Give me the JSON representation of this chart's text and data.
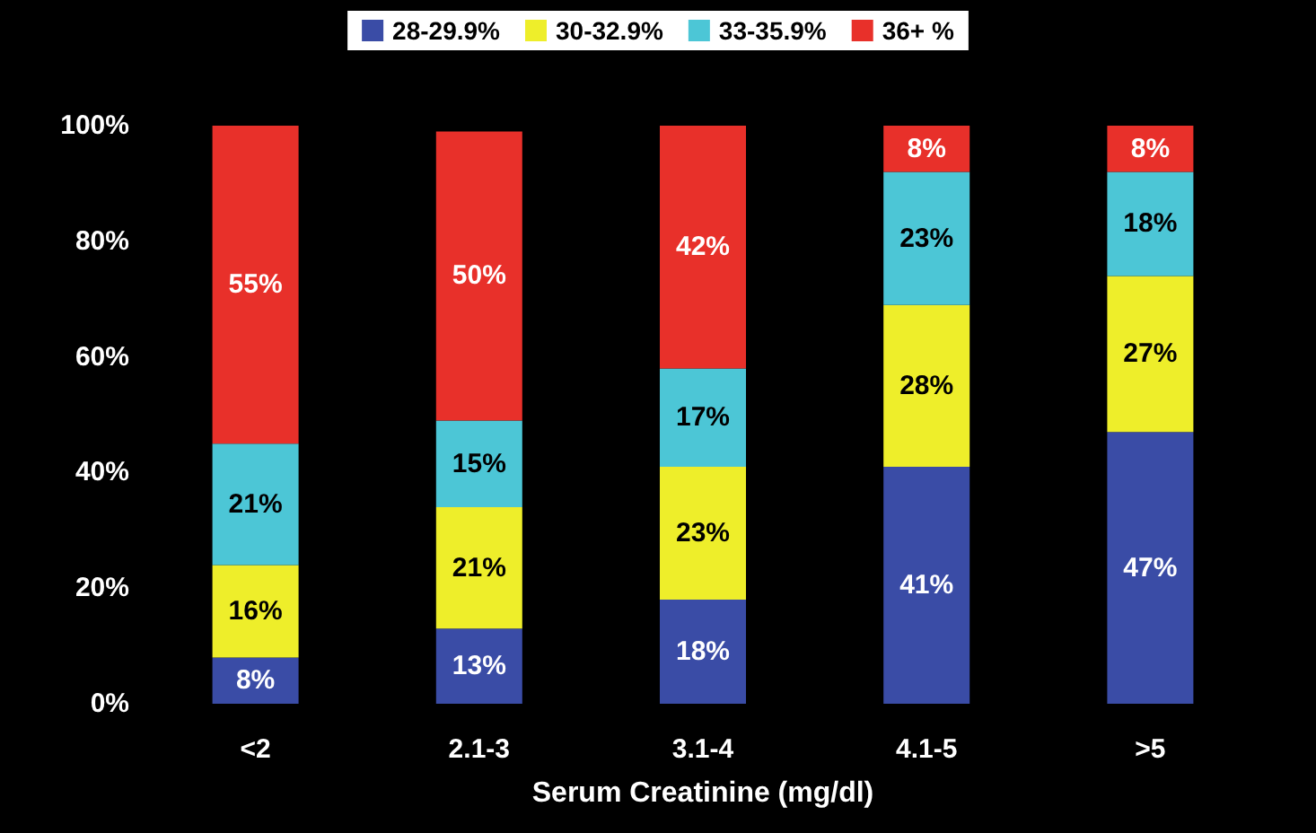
{
  "chart_data": {
    "type": "bar",
    "stacked": true,
    "xlabel": "Serum Creatinine (mg/dl)",
    "categories": [
      "<2",
      "2.1-3",
      "3.1-4",
      "4.1-5",
      ">5"
    ],
    "series": [
      {
        "name": "28-29.9%",
        "color": "#3a4ca6",
        "values": [
          8,
          13,
          18,
          41,
          47
        ],
        "value_labels": [
          "8%",
          "13%",
          "18%",
          "41%",
          "47%"
        ]
      },
      {
        "name": "30-32.9%",
        "color": "#eeee2a",
        "values": [
          16,
          21,
          23,
          28,
          27
        ],
        "value_labels": [
          "16%",
          "21%",
          "23%",
          "28%",
          "27%"
        ]
      },
      {
        "name": "33-35.9%",
        "color": "#4cc6d6",
        "values": [
          21,
          15,
          17,
          23,
          18
        ],
        "value_labels": [
          "21%",
          "15%",
          "17%",
          "23%",
          "18%"
        ]
      },
      {
        "name": "36+ %",
        "color": "#e8302a",
        "values": [
          55,
          50,
          42,
          8,
          8
        ],
        "value_labels": [
          "55%",
          "50%",
          "42%",
          "8%",
          "8%"
        ]
      }
    ],
    "ylim": [
      0,
      100
    ],
    "yticks": [
      {
        "value": 0,
        "label": "0%"
      },
      {
        "value": 20,
        "label": "20%"
      },
      {
        "value": 40,
        "label": "40%"
      },
      {
        "value": 60,
        "label": "60%"
      },
      {
        "value": 80,
        "label": "80%"
      },
      {
        "value": 100,
        "label": "100%"
      }
    ],
    "grid": false,
    "legend": "top"
  }
}
